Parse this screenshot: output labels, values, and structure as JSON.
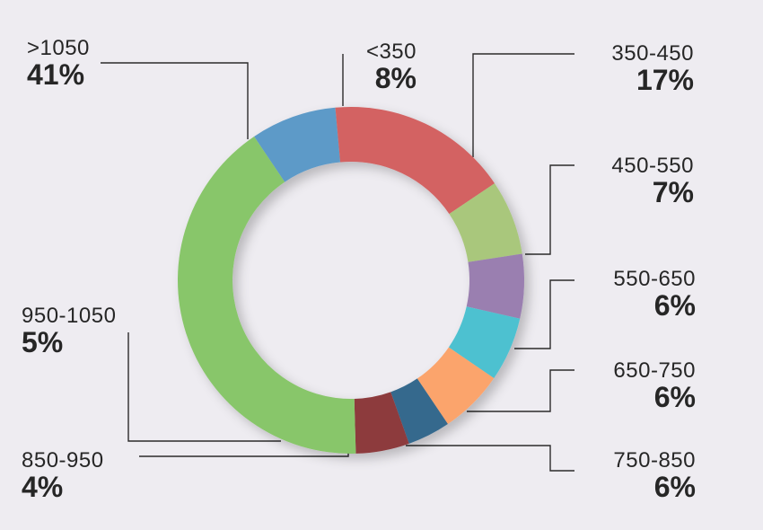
{
  "chart_data": {
    "type": "pie",
    "variant": "donut",
    "categories": [
      "<350",
      "350-450",
      "450-550",
      "550-650",
      "650-750",
      "750-850",
      "850-950",
      "950-1050",
      ">1050"
    ],
    "values": [
      8,
      17,
      7,
      6,
      6,
      6,
      4,
      5,
      41
    ],
    "value_labels": [
      "8%",
      "17%",
      "7%",
      "6%",
      "6%",
      "6%",
      "4%",
      "5%",
      "41%"
    ],
    "colors": [
      "#5d9ac8",
      "#d36262",
      "#a9c77c",
      "#9a7fb0",
      "#4ec1d0",
      "#fba46c",
      "#35698d",
      "#8d3a3d",
      "#88c66a"
    ],
    "legend": "none"
  }
}
